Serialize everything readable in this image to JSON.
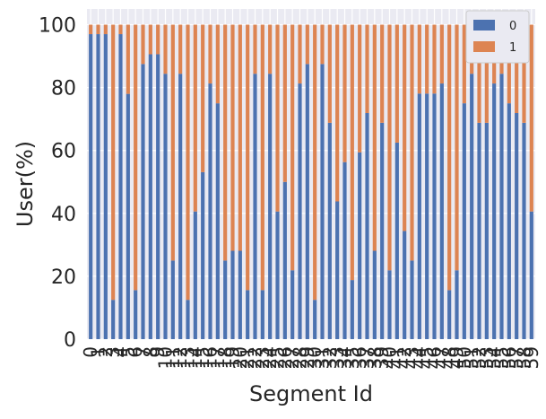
{
  "chart_data": {
    "type": "bar",
    "stacked": true,
    "xlabel": "Segment Id",
    "ylabel": "User(%)",
    "ylim": [
      0,
      105
    ],
    "yticks": [
      0,
      20,
      40,
      60,
      80,
      100
    ],
    "grid": true,
    "legend_position": "top-right",
    "categories": [
      "0",
      "1",
      "2",
      "3",
      "4",
      "5",
      "6",
      "7",
      "8",
      "9",
      "10",
      "11",
      "12",
      "13",
      "14",
      "15",
      "16",
      "17",
      "18",
      "19",
      "20",
      "21",
      "22",
      "23",
      "24",
      "25",
      "26",
      "27",
      "28",
      "29",
      "30",
      "31",
      "32",
      "33",
      "34",
      "35",
      "36",
      "37",
      "38",
      "39",
      "40",
      "41",
      "42",
      "43",
      "44",
      "45",
      "46",
      "47",
      "48",
      "49",
      "50",
      "51",
      "52",
      "53",
      "54",
      "55",
      "56",
      "57",
      "58",
      "59"
    ],
    "series": [
      {
        "name": "0",
        "color": "#4c72b0",
        "values": [
          97,
          97,
          97,
          12.5,
          97,
          78,
          15.6,
          87.5,
          90.6,
          90.6,
          84.4,
          25,
          84.4,
          12.5,
          40.6,
          53.1,
          81.3,
          75,
          25,
          28.1,
          28.1,
          15.6,
          84.4,
          15.6,
          84.4,
          40.6,
          50,
          21.9,
          81.3,
          87.5,
          12.5,
          87.5,
          68.8,
          43.8,
          56.3,
          18.8,
          59.4,
          71.9,
          28.1,
          68.8,
          21.9,
          62.5,
          34.4,
          25,
          78.1,
          78.1,
          78.1,
          81.3,
          15.6,
          21.9,
          75,
          84.4,
          68.8,
          68.8,
          81.3,
          84.4,
          75,
          71.9,
          68.8,
          40.6
        ]
      },
      {
        "name": "1",
        "color": "#dd8452",
        "values": [
          3,
          3,
          3,
          87.5,
          3,
          22,
          84.4,
          12.5,
          9.4,
          9.4,
          15.6,
          75,
          15.6,
          87.5,
          59.4,
          46.9,
          18.7,
          25,
          75,
          71.9,
          71.9,
          84.4,
          15.6,
          84.4,
          15.6,
          59.4,
          50,
          78.1,
          18.7,
          12.5,
          87.5,
          12.5,
          31.2,
          56.2,
          43.7,
          81.2,
          40.6,
          28.1,
          71.9,
          31.2,
          78.1,
          37.5,
          65.6,
          75,
          21.9,
          21.9,
          21.9,
          18.7,
          84.4,
          78.1,
          25,
          15.6,
          31.2,
          31.2,
          18.7,
          15.6,
          25,
          28.1,
          31.2,
          59.4
        ]
      }
    ]
  }
}
